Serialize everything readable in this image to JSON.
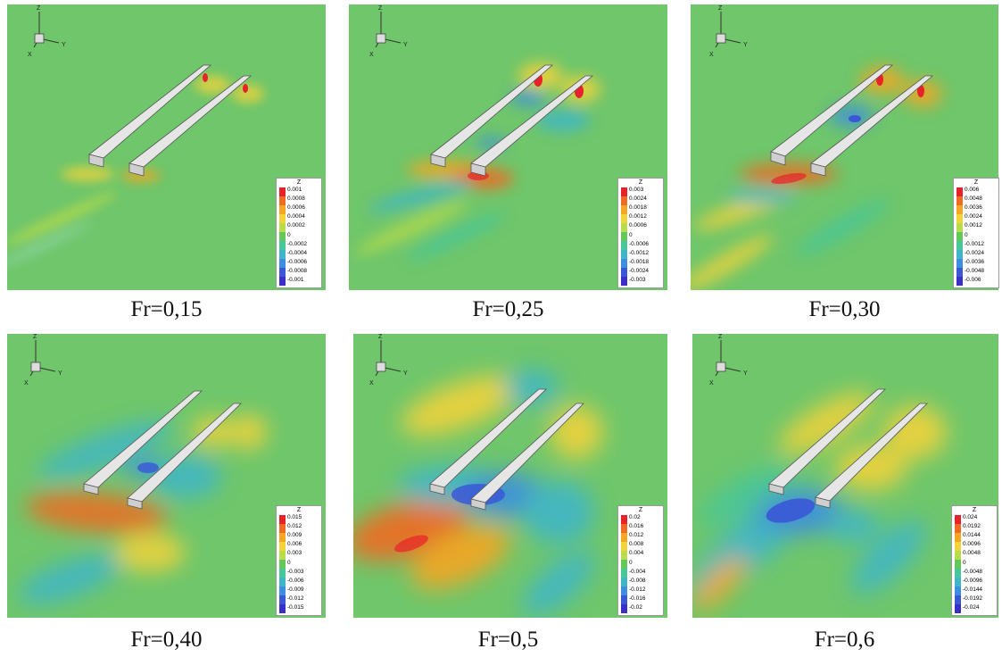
{
  "panels": [
    {
      "caption": "Fr=0,15",
      "legend_title": "Z",
      "legend_labels": [
        "0.001",
        "0.0008",
        "0.0006",
        "0.0004",
        "0.0002",
        "0",
        "-0.0002",
        "-0.0004",
        "-0.0006",
        "-0.0008",
        "-0.001"
      ]
    },
    {
      "caption": "Fr=0,25",
      "legend_title": "Z",
      "legend_labels": [
        "0.003",
        "0.0024",
        "0.0018",
        "0.0012",
        "0.0006",
        "0",
        "-0.0006",
        "-0.0012",
        "-0.0018",
        "-0.0024",
        "-0.003"
      ]
    },
    {
      "caption": "Fr=0,30",
      "legend_title": "Z",
      "legend_labels": [
        "0.006",
        "0.0048",
        "0.0036",
        "0.0024",
        "0.0012",
        "0",
        "-0.0012",
        "-0.0024",
        "-0.0036",
        "-0.0048",
        "-0.006"
      ]
    },
    {
      "caption": "Fr=0,40",
      "legend_title": "Z",
      "legend_labels": [
        "0.015",
        "0.012",
        "0.009",
        "0.006",
        "0.003",
        "0",
        "-0.003",
        "-0.006",
        "-0.009",
        "-0.012",
        "-0.015"
      ]
    },
    {
      "caption": "Fr=0,5",
      "legend_title": "Z",
      "legend_labels": [
        "0.02",
        "0.016",
        "0.012",
        "0.008",
        "0.004",
        "0",
        "-0.004",
        "-0.008",
        "-0.012",
        "-0.016",
        "-0.02"
      ]
    },
    {
      "caption": "Fr=0,6",
      "legend_title": "Z",
      "legend_labels": [
        "0.024",
        "0.0192",
        "0.0144",
        "0.0096",
        "0.0048",
        "0",
        "-0.0048",
        "-0.0096",
        "-0.0144",
        "-0.0192",
        "-0.024"
      ]
    }
  ],
  "axis_labels": {
    "z": "Z",
    "x": "X",
    "y": "Y"
  },
  "colormap": [
    "#e8222a",
    "#f06a24",
    "#f5a623",
    "#f2d33a",
    "#b9dc4a",
    "#63c85a",
    "#47c69a",
    "#3fb6c8",
    "#3d8ee0",
    "#3a58d6",
    "#3b2fc9"
  ],
  "background_color": "#6fc66b"
}
